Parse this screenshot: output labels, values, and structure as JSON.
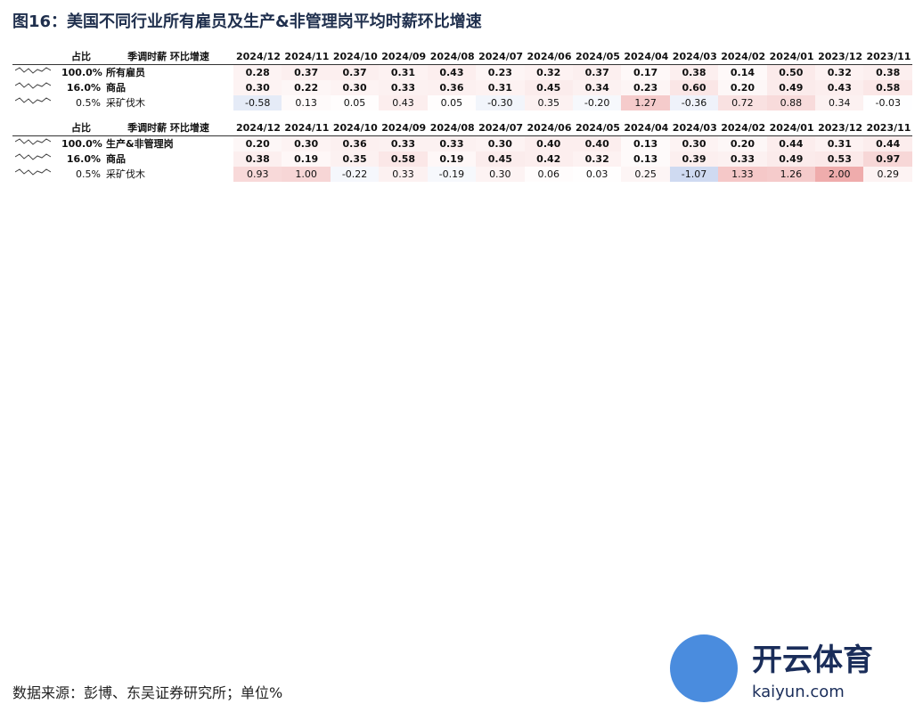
{
  "title": "图16：美国不同行业所有雇员及生产&非管理岗平均时薪环比增速",
  "footer": "数据来源：彭博、东吴证券研究所；单位%",
  "headers": [
    "占比",
    "季调时薪 环比增速",
    "2024/12",
    "2024/11",
    "2024/10",
    "2024/09",
    "2024/08",
    "2024/07",
    "2024/06",
    "2024/05",
    "2024/04",
    "2024/03",
    "2024/02",
    "2024/01",
    "2023/12",
    "2023/11"
  ],
  "section1": [
    {
      "share": "100.0%",
      "name": "所有雇员",
      "bold": true,
      "values": [
        "0.28",
        "0.37",
        "0.37",
        "0.31",
        "0.43",
        "0.23",
        "0.32",
        "0.37",
        "0.17",
        "0.38",
        "0.14",
        "0.50",
        "0.32",
        "0.38"
      ]
    },
    {
      "share": "16.0%",
      "name": "商品",
      "bold": true,
      "values": [
        "0.30",
        "0.22",
        "0.30",
        "0.33",
        "0.36",
        "0.31",
        "0.45",
        "0.34",
        "0.23",
        "0.60",
        "0.20",
        "0.49",
        "0.43",
        "0.58"
      ]
    },
    {
      "share": "0.5%",
      "name": "采矿伐木",
      "values": [
        "-0.58",
        "0.13",
        "0.05",
        "0.43",
        "0.05",
        "-0.30",
        "0.35",
        "-0.20",
        "1.27",
        "-0.36",
        "0.72",
        "0.88",
        "0.34",
        "-0.03"
      ]
    }
  ],
  "section2": [
    {
      "share": "100.0%",
      "name": "生产&非管理岗",
      "bold": true,
      "values": [
        "0.20",
        "0.30",
        "0.36",
        "0.33",
        "0.33",
        "0.30",
        "0.40",
        "0.40",
        "0.13",
        "0.30",
        "0.20",
        "0.44",
        "0.31",
        "0.44"
      ]
    },
    {
      "share": "16.0%",
      "name": "商品",
      "bold": true,
      "values": [
        "0.38",
        "0.19",
        "0.35",
        "0.58",
        "0.19",
        "0.45",
        "0.42",
        "0.32",
        "0.13",
        "0.39",
        "0.33",
        "0.49",
        "0.53",
        "0.97"
      ]
    },
    {
      "share": "0.5%",
      "name": "采矿伐木",
      "values": [
        "0.93",
        "1.00",
        "-0.22",
        "0.33",
        "-0.19",
        "0.30",
        "0.06",
        "0.03",
        "0.25",
        "-1.07",
        "1.33",
        "1.26",
        "2.00",
        "0.29"
      ]
    }
  ],
  "watermark": {
    "brand": "开云体育",
    "site": "kaiyun.com"
  },
  "colors": {
    "pos": "#e05a5a",
    "neg": "#4a74c9",
    "title": "#1f2f4d"
  }
}
